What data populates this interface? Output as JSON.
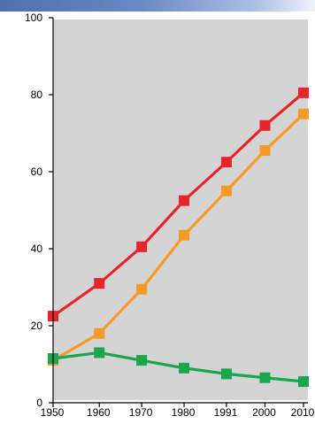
{
  "chart_data": {
    "type": "line",
    "title": "",
    "xlabel": "",
    "ylabel": "",
    "x": [
      "1950",
      "1960",
      "1970",
      "1980",
      "1991",
      "2000",
      "2010"
    ],
    "x_positions": [
      1950,
      1962,
      1973,
      1984,
      1995,
      2005,
      2015
    ],
    "ylim": [
      0,
      100
    ],
    "yticks": [
      "0",
      "20",
      "40",
      "60",
      "80",
      "100"
    ],
    "grid": false,
    "plot_background": "#d4d4d4",
    "series": [
      {
        "color": "#e8242b",
        "values": [
          22.5,
          31,
          40.5,
          52.5,
          62.5,
          72,
          80.5
        ]
      },
      {
        "color": "#f59a26",
        "values": [
          11,
          18,
          29.5,
          43.5,
          55,
          65.5,
          75
        ]
      },
      {
        "color": "#1ba54c",
        "values": [
          11.5,
          13,
          11,
          9,
          7.5,
          6.5,
          5.5
        ]
      }
    ]
  }
}
